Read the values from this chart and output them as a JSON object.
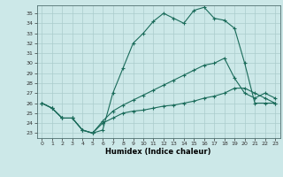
{
  "xlabel": "Humidex (Indice chaleur)",
  "background_color": "#cce8e8",
  "grid_color": "#aacccc",
  "line_color": "#1a6b5a",
  "xlim": [
    -0.5,
    23.5
  ],
  "ylim": [
    22.5,
    35.8
  ],
  "xticks": [
    0,
    1,
    2,
    3,
    4,
    5,
    6,
    7,
    8,
    9,
    10,
    11,
    12,
    13,
    14,
    15,
    16,
    17,
    18,
    19,
    20,
    21,
    22,
    23
  ],
  "yticks": [
    23,
    24,
    25,
    26,
    27,
    28,
    29,
    30,
    31,
    32,
    33,
    34,
    35
  ],
  "line1_x": [
    0,
    1,
    2,
    3,
    4,
    5,
    6,
    7,
    8,
    9,
    10,
    11,
    12,
    13,
    14,
    15,
    16,
    17,
    18,
    19,
    20,
    21,
    22,
    23
  ],
  "line1_y": [
    26.0,
    25.5,
    24.5,
    24.5,
    23.3,
    23.0,
    23.3,
    27.0,
    29.5,
    32.0,
    33.0,
    34.2,
    35.0,
    34.5,
    34.0,
    35.3,
    35.6,
    34.5,
    34.3,
    33.5,
    30.0,
    26.0,
    26.0,
    26.0
  ],
  "line2_x": [
    0,
    1,
    2,
    3,
    4,
    5,
    6,
    7,
    8,
    9,
    10,
    11,
    12,
    13,
    14,
    15,
    16,
    17,
    18,
    19,
    20,
    21,
    22,
    23
  ],
  "line2_y": [
    26.0,
    25.5,
    24.5,
    24.5,
    23.3,
    23.0,
    24.2,
    25.2,
    25.8,
    26.3,
    26.8,
    27.3,
    27.8,
    28.3,
    28.8,
    29.3,
    29.8,
    30.0,
    30.5,
    28.5,
    27.0,
    26.5,
    27.0,
    26.5
  ],
  "line3_x": [
    0,
    1,
    2,
    3,
    4,
    5,
    6,
    7,
    8,
    9,
    10,
    11,
    12,
    13,
    14,
    15,
    16,
    17,
    18,
    19,
    20,
    21,
    22,
    23
  ],
  "line3_y": [
    26.0,
    25.5,
    24.5,
    24.5,
    23.3,
    23.0,
    24.0,
    24.5,
    25.0,
    25.2,
    25.3,
    25.5,
    25.7,
    25.8,
    26.0,
    26.2,
    26.5,
    26.7,
    27.0,
    27.5,
    27.5,
    27.0,
    26.5,
    26.0
  ]
}
